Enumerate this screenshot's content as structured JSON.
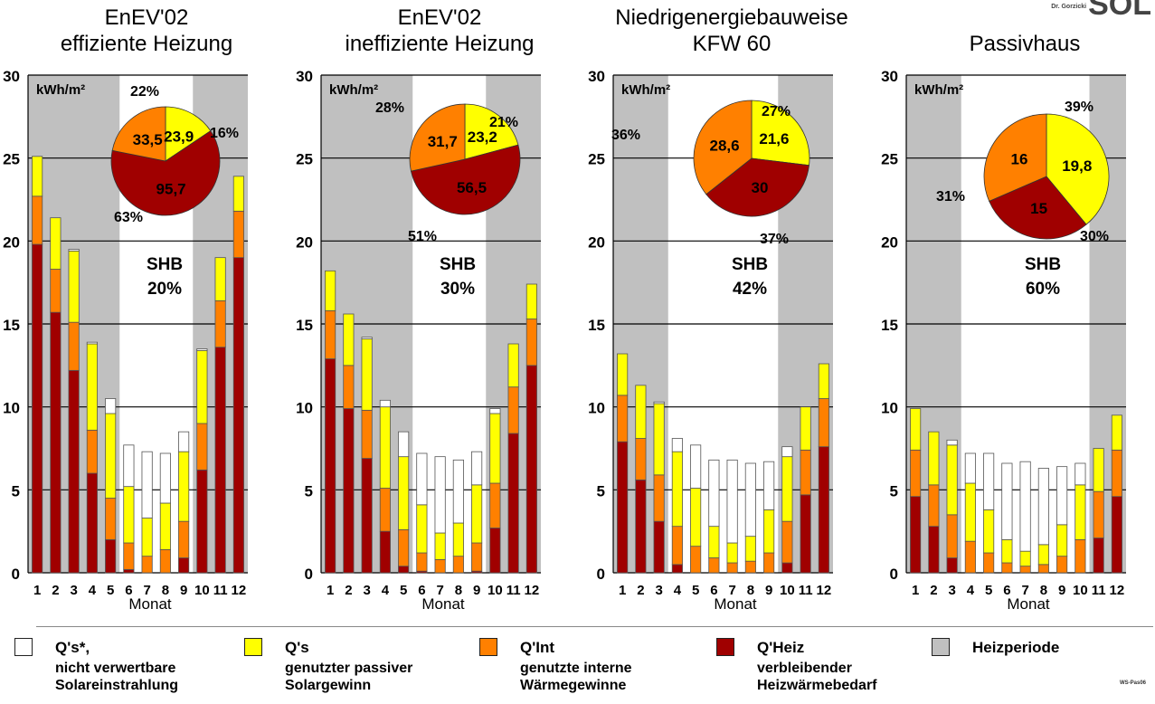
{
  "logo": {
    "author": "Dr. Gorzicki",
    "brand": "SOL"
  },
  "footer_ref": "WS-Pas06",
  "colors": {
    "heizperiode": "#c0c0c0",
    "heiz": "#a00000",
    "int": "#ff8000",
    "solar_used": "#ffff00",
    "solar_unused": "#ffffff"
  },
  "legend": [
    {
      "key": "solar_unused",
      "title": "Q's*,",
      "subtitle": "nicht verwertbare\nSolareinstrahlung"
    },
    {
      "key": "solar_used",
      "title": "Q's",
      "subtitle": "genutzter passiver\nSolargewinn"
    },
    {
      "key": "int",
      "title": "Q'Int",
      "subtitle": "genutzte interne\nWärmegewinne"
    },
    {
      "key": "heiz",
      "title": "Q'Heiz",
      "subtitle": "verbleibender\nHeizwärmebedarf"
    },
    {
      "key": "heizperiode",
      "title": "Heizperiode",
      "subtitle": ""
    }
  ],
  "chart_data": [
    {
      "type": "bar",
      "title": [
        "EnEV'02",
        "effiziente Heizung"
      ],
      "xlabel": "Monat",
      "unit_label": "kWh/m²",
      "ylim": [
        0,
        30
      ],
      "yticks": [
        0,
        5,
        10,
        15,
        20,
        25,
        30
      ],
      "categories": [
        "1",
        "2",
        "3",
        "4",
        "5",
        "6",
        "7",
        "8",
        "9",
        "10",
        "11",
        "12"
      ],
      "heating_months": [
        "1",
        "2",
        "3",
        "4",
        "5",
        "10",
        "11",
        "12"
      ],
      "stacked_series": [
        {
          "key": "heiz",
          "values": [
            19.8,
            15.7,
            12.2,
            6.0,
            2.0,
            0.2,
            0,
            0,
            0.9,
            6.2,
            13.6,
            19.0
          ]
        },
        {
          "key": "int",
          "values": [
            2.9,
            2.6,
            2.9,
            2.6,
            2.5,
            1.6,
            1.0,
            1.4,
            2.2,
            2.8,
            2.8,
            2.8
          ]
        },
        {
          "key": "solar_used",
          "values": [
            2.4,
            3.1,
            4.3,
            5.2,
            5.1,
            3.4,
            2.3,
            2.8,
            4.2,
            4.4,
            2.6,
            2.1
          ]
        },
        {
          "key": "solar_unused",
          "values": [
            0,
            0,
            0.1,
            0.1,
            0.9,
            2.5,
            4.0,
            3.0,
            1.2,
            0.1,
            0,
            0
          ]
        }
      ],
      "pie": {
        "slices": [
          {
            "key": "solar_used",
            "value": 23.9,
            "percent": "16%"
          },
          {
            "key": "heiz",
            "value": 95.7,
            "percent": "63%"
          },
          {
            "key": "int",
            "value": 33.5,
            "percent": "22%"
          }
        ]
      },
      "shb": {
        "label": "SHB",
        "value": "20%"
      }
    },
    {
      "type": "bar",
      "title": [
        "EnEV'02",
        "ineffiziente Heizung"
      ],
      "xlabel": "Monat",
      "unit_label": "kWh/m²",
      "ylim": [
        0,
        30
      ],
      "yticks": [
        0,
        5,
        10,
        15,
        20,
        25,
        30
      ],
      "categories": [
        "1",
        "2",
        "3",
        "4",
        "5",
        "6",
        "7",
        "8",
        "9",
        "10",
        "11",
        "12"
      ],
      "heating_months": [
        "1",
        "2",
        "3",
        "4",
        "5",
        "10",
        "11",
        "12"
      ],
      "stacked_series": [
        {
          "key": "heiz",
          "values": [
            12.9,
            9.9,
            6.9,
            2.5,
            0.4,
            0.1,
            0,
            0,
            0.1,
            2.7,
            8.4,
            12.5
          ]
        },
        {
          "key": "int",
          "values": [
            2.9,
            2.6,
            2.9,
            2.6,
            2.2,
            1.1,
            0.8,
            1.0,
            1.7,
            2.7,
            2.8,
            2.8
          ]
        },
        {
          "key": "solar_used",
          "values": [
            2.4,
            3.1,
            4.3,
            4.9,
            4.4,
            2.9,
            1.6,
            2.0,
            3.5,
            4.2,
            2.6,
            2.1
          ]
        },
        {
          "key": "solar_unused",
          "values": [
            0,
            0,
            0.1,
            0.4,
            1.5,
            3.1,
            4.6,
            3.8,
            2.0,
            0.3,
            0,
            0
          ]
        }
      ],
      "pie": {
        "slices": [
          {
            "key": "solar_used",
            "value": 23.2,
            "percent": "21%"
          },
          {
            "key": "heiz",
            "value": 56.5,
            "percent": "51%"
          },
          {
            "key": "int",
            "value": 31.7,
            "percent": "28%"
          }
        ]
      },
      "shb": {
        "label": "SHB",
        "value": "30%"
      }
    },
    {
      "type": "bar",
      "title": [
        "Niedrigenergiebauweise",
        "KFW 60"
      ],
      "xlabel": "Monat",
      "unit_label": "kWh/m²",
      "ylim": [
        0,
        30
      ],
      "yticks": [
        0,
        5,
        10,
        15,
        20,
        25,
        30
      ],
      "categories": [
        "1",
        "2",
        "3",
        "4",
        "5",
        "6",
        "7",
        "8",
        "9",
        "10",
        "11",
        "12"
      ],
      "heating_months": [
        "1",
        "2",
        "3",
        "10",
        "11",
        "12"
      ],
      "stacked_series": [
        {
          "key": "heiz",
          "values": [
            7.9,
            5.6,
            3.1,
            0.5,
            0,
            0,
            0,
            0,
            0,
            0.6,
            4.7,
            7.6
          ]
        },
        {
          "key": "int",
          "values": [
            2.8,
            2.5,
            2.8,
            2.3,
            1.6,
            0.9,
            0.6,
            0.7,
            1.2,
            2.5,
            2.7,
            2.9
          ]
        },
        {
          "key": "solar_used",
          "values": [
            2.5,
            3.2,
            4.3,
            4.5,
            3.5,
            1.9,
            1.2,
            1.5,
            2.6,
            3.9,
            2.6,
            2.1
          ]
        },
        {
          "key": "solar_unused",
          "values": [
            0,
            0,
            0.1,
            0.8,
            2.6,
            4.0,
            5.0,
            4.4,
            2.9,
            0.6,
            0,
            0
          ]
        }
      ],
      "pie": {
        "slices": [
          {
            "key": "solar_used",
            "value": 21.6,
            "percent": "27%"
          },
          {
            "key": "heiz",
            "value": 30,
            "percent": "37%"
          },
          {
            "key": "int",
            "value": 28.6,
            "percent": "36%"
          }
        ]
      },
      "shb": {
        "label": "SHB",
        "value": "42%"
      }
    },
    {
      "type": "bar",
      "title": [
        "",
        "Passivhaus"
      ],
      "xlabel": "Monat",
      "unit_label": "kWh/m²",
      "ylim": [
        0,
        30
      ],
      "yticks": [
        0,
        5,
        10,
        15,
        20,
        25,
        30
      ],
      "categories": [
        "1",
        "2",
        "3",
        "4",
        "5",
        "6",
        "7",
        "8",
        "9",
        "10",
        "11",
        "12"
      ],
      "heating_months": [
        "1",
        "2",
        "3",
        "11",
        "12"
      ],
      "stacked_series": [
        {
          "key": "heiz",
          "values": [
            4.6,
            2.8,
            0.9,
            0,
            0,
            0,
            0,
            0,
            0,
            0,
            2.1,
            4.6
          ]
        },
        {
          "key": "int",
          "values": [
            2.8,
            2.5,
            2.6,
            1.9,
            1.2,
            0.6,
            0.4,
            0.5,
            1.0,
            2.0,
            2.8,
            2.8
          ]
        },
        {
          "key": "solar_used",
          "values": [
            2.5,
            3.2,
            4.2,
            3.5,
            2.6,
            1.4,
            0.9,
            1.2,
            1.9,
            3.3,
            2.6,
            2.1
          ]
        },
        {
          "key": "solar_unused",
          "values": [
            0,
            0,
            0.3,
            1.8,
            3.4,
            4.6,
            5.4,
            4.6,
            3.5,
            1.3,
            0,
            0
          ]
        }
      ],
      "pie": {
        "slices": [
          {
            "key": "solar_used",
            "value": 19.8,
            "percent": "39%"
          },
          {
            "key": "heiz",
            "value": 15,
            "percent": "30%"
          },
          {
            "key": "int",
            "value": 16,
            "percent": "31%"
          }
        ]
      },
      "shb": {
        "label": "SHB",
        "value": "60%"
      }
    }
  ]
}
